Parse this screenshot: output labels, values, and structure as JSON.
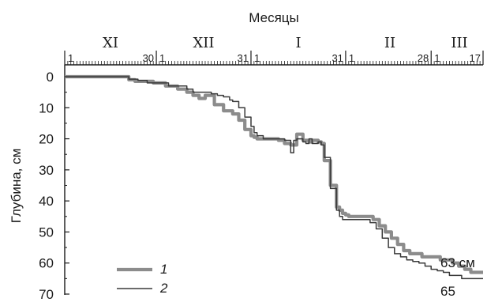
{
  "chart_data": {
    "type": "line",
    "xlabel": "Месяцы",
    "ylabel": "Глубина, см",
    "ylim": [
      0,
      70
    ],
    "y_inverted": true,
    "y_ticks": [
      "0",
      "10",
      "20",
      "30",
      "40",
      "50",
      "60",
      "70"
    ],
    "months": [
      {
        "label": "XI",
        "days": 30,
        "day_labels": [
          "1",
          "30"
        ]
      },
      {
        "label": "XII",
        "days": 31,
        "day_labels": [
          "1",
          "31"
        ]
      },
      {
        "label": "I",
        "days": 31,
        "day_labels": [
          "1",
          "31"
        ]
      },
      {
        "label": "II",
        "days": 28,
        "day_labels": [
          "1",
          "28"
        ]
      },
      {
        "label": "III",
        "days": 17,
        "day_labels": [
          "1",
          "17"
        ]
      }
    ],
    "x_unit": "day",
    "series": [
      {
        "name": "1",
        "color": "#8c8c8c",
        "end_label": "63 см",
        "x": [
          0,
          17,
          21,
          23,
          26,
          29,
          33,
          37,
          40,
          42,
          44,
          46,
          49,
          52,
          55,
          57,
          59,
          61,
          62,
          63,
          65,
          68,
          70,
          72,
          74,
          76,
          78,
          80,
          81,
          83,
          84,
          85,
          87,
          89,
          90,
          91,
          92,
          93,
          94,
          95,
          96,
          97,
          98,
          99,
          101,
          103,
          105,
          107,
          109,
          111,
          113,
          115,
          117,
          119,
          121,
          123,
          125,
          127,
          129,
          131,
          133,
          135,
          137
        ],
        "y": [
          0,
          0,
          1,
          1.5,
          1.5,
          2,
          3,
          4,
          5,
          6,
          7,
          6,
          9,
          11,
          12,
          14,
          17,
          19,
          19.5,
          20,
          20,
          20,
          20.5,
          21.5,
          22,
          18.5,
          20.5,
          21,
          20.5,
          21,
          21.5,
          27,
          35,
          42,
          43,
          44,
          44.5,
          45,
          45,
          45,
          45,
          45,
          45,
          45,
          46,
          48,
          50,
          52,
          54,
          56,
          57,
          57,
          58,
          58,
          58,
          59,
          59,
          60,
          61,
          62,
          63,
          63,
          63
        ]
      },
      {
        "name": "2",
        "color": "#3a3a3a",
        "end_label": "65",
        "x": [
          0,
          17,
          21,
          24,
          27,
          30,
          34,
          38,
          40,
          42,
          44,
          46,
          48,
          50,
          52,
          54,
          55,
          57,
          59,
          61,
          62,
          63,
          65,
          68,
          70,
          72,
          74,
          75,
          76,
          78,
          79,
          80,
          81,
          83,
          84,
          85,
          87,
          89,
          90,
          91,
          92,
          93,
          94,
          96,
          98,
          99,
          100,
          102,
          104,
          106,
          108,
          110,
          112,
          114,
          116,
          118,
          120,
          122,
          124,
          126,
          128,
          130,
          132,
          134,
          137
        ],
        "y": [
          0,
          0,
          0.8,
          1.2,
          2,
          2,
          3,
          3,
          4,
          5,
          5,
          5,
          5.5,
          6,
          6.5,
          7.5,
          8,
          10,
          13,
          16,
          18,
          19,
          20,
          20,
          20,
          20.5,
          24.5,
          20.5,
          20,
          21,
          21.5,
          20,
          21.5,
          21,
          22,
          26,
          36,
          43,
          45,
          46,
          46,
          46,
          46,
          46,
          46,
          46,
          47,
          49,
          52,
          55,
          57,
          58,
          59,
          59.5,
          60,
          61,
          62,
          62.5,
          63,
          64,
          64,
          65,
          65,
          65,
          65
        ]
      }
    ]
  }
}
